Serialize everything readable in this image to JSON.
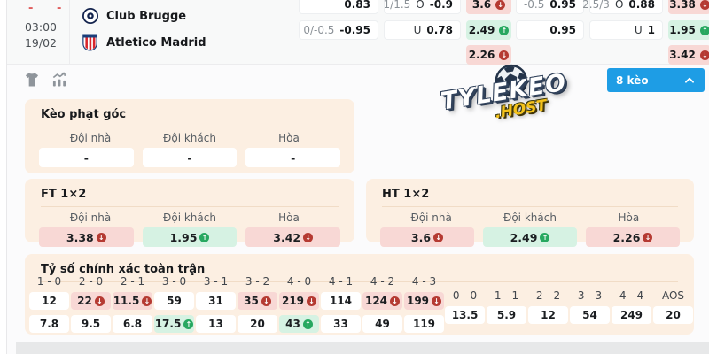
{
  "match": {
    "time": "03:00",
    "date": "19/02",
    "status_marks": [
      "-",
      "-"
    ],
    "home_team": "Club Brugge",
    "away_team": "Atletico Madrid"
  },
  "odds_board": {
    "blocks": [
      {
        "hdp": [
          {
            "line": "",
            "odds": "0.83"
          },
          {
            "line": "0/-0.5",
            "odds": "-0.95"
          }
        ],
        "ou": [
          {
            "line": "1/1.5",
            "side": "O",
            "odds": "-0.9"
          },
          {
            "line": "",
            "side": "U",
            "odds": "0.78"
          }
        ],
        "x12": [
          {
            "odds": "3.6",
            "trend": "down"
          },
          {
            "odds": "2.49",
            "trend": "up"
          },
          {
            "odds": "2.26",
            "trend": "down"
          }
        ]
      },
      {
        "hdp": [
          {
            "line": "-0.5",
            "odds": "0.95"
          },
          {
            "line": "",
            "odds": "0.95"
          }
        ],
        "ou": [
          {
            "line": "2.5/3",
            "side": "O",
            "odds": "0.88"
          },
          {
            "line": "",
            "side": "U",
            "odds": "1"
          }
        ],
        "x12": [
          {
            "odds": "3.38",
            "trend": "down"
          },
          {
            "odds": "1.95",
            "trend": "up"
          },
          {
            "odds": "3.42",
            "trend": "down"
          }
        ]
      }
    ]
  },
  "toolbar": {
    "collapse_label": "8 kèo"
  },
  "watermark": {
    "title": "TYLEKEO",
    "subtitle": ".HOST"
  },
  "sections": {
    "corner": {
      "title": "Kèo phạt góc",
      "headers": [
        "Đội nhà",
        "Đội khách",
        "Hòa"
      ],
      "values": [
        {
          "odds": "-",
          "trend": "none"
        },
        {
          "odds": "-",
          "trend": "none"
        },
        {
          "odds": "-",
          "trend": "none"
        }
      ]
    },
    "ft": {
      "title": "FT 1×2",
      "headers": [
        "Đội nhà",
        "Đội khách",
        "Hòa"
      ],
      "values": [
        {
          "odds": "3.38",
          "trend": "down"
        },
        {
          "odds": "1.95",
          "trend": "up"
        },
        {
          "odds": "3.42",
          "trend": "down"
        }
      ]
    },
    "ht": {
      "title": "HT 1×2",
      "headers": [
        "Đội nhà",
        "Đội khách",
        "Hòa"
      ],
      "values": [
        {
          "odds": "3.6",
          "trend": "down"
        },
        {
          "odds": "2.49",
          "trend": "up"
        },
        {
          "odds": "2.26",
          "trend": "down"
        }
      ]
    },
    "score": {
      "title": "Tỷ số chính xác toàn trận",
      "main_columns": [
        {
          "label": "1 - 0",
          "rows": [
            {
              "odds": "12",
              "trend": "none"
            },
            {
              "odds": "7.8",
              "trend": "none"
            }
          ]
        },
        {
          "label": "2 - 0",
          "rows": [
            {
              "odds": "22",
              "trend": "down"
            },
            {
              "odds": "9.5",
              "trend": "none"
            }
          ]
        },
        {
          "label": "2 - 1",
          "rows": [
            {
              "odds": "11.5",
              "trend": "down"
            },
            {
              "odds": "6.8",
              "trend": "none"
            }
          ]
        },
        {
          "label": "3 - 0",
          "rows": [
            {
              "odds": "59",
              "trend": "none"
            },
            {
              "odds": "17.5",
              "trend": "up"
            }
          ]
        },
        {
          "label": "3 - 1",
          "rows": [
            {
              "odds": "31",
              "trend": "none"
            },
            {
              "odds": "13",
              "trend": "none"
            }
          ]
        },
        {
          "label": "3 - 2",
          "rows": [
            {
              "odds": "35",
              "trend": "down"
            },
            {
              "odds": "20",
              "trend": "none"
            }
          ]
        },
        {
          "label": "4 - 0",
          "rows": [
            {
              "odds": "219",
              "trend": "down"
            },
            {
              "odds": "43",
              "trend": "up"
            }
          ]
        },
        {
          "label": "4 - 1",
          "rows": [
            {
              "odds": "114",
              "trend": "none"
            },
            {
              "odds": "33",
              "trend": "none"
            }
          ]
        },
        {
          "label": "4 - 2",
          "rows": [
            {
              "odds": "124",
              "trend": "down"
            },
            {
              "odds": "49",
              "trend": "none"
            }
          ]
        },
        {
          "label": "4 - 3",
          "rows": [
            {
              "odds": "199",
              "trend": "down"
            },
            {
              "odds": "119",
              "trend": "none"
            }
          ]
        }
      ],
      "draw_columns": [
        {
          "label": "0 - 0",
          "odds": "13.5"
        },
        {
          "label": "1 - 1",
          "odds": "5.9"
        },
        {
          "label": "2 - 2",
          "odds": "12"
        },
        {
          "label": "3 - 3",
          "odds": "54"
        },
        {
          "label": "4 - 4",
          "odds": "249"
        },
        {
          "label": "AOS",
          "odds": "20"
        }
      ]
    }
  },
  "colors": {
    "accent_blue": "#1e9de5",
    "section_bg": "#fcefe2",
    "down_cell_bg": "#f8d8d5",
    "up_cell_bg": "#d6f2e3",
    "down_icon": "#b53a32",
    "up_icon": "#27a860"
  }
}
